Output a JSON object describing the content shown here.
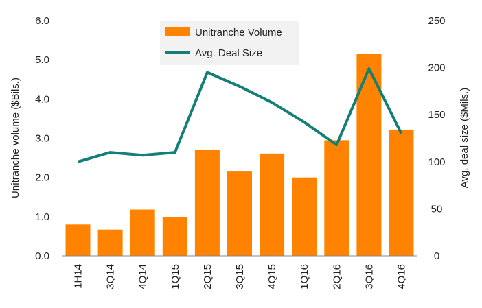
{
  "chart_data": {
    "type": "bar",
    "categories": [
      "1H14",
      "3Q14",
      "4Q14",
      "1Q15",
      "2Q15",
      "3Q15",
      "4Q15",
      "1Q16",
      "2Q16",
      "3Q16",
      "4Q16"
    ],
    "series": [
      {
        "name": "Unitranche Volume",
        "type": "bar",
        "axis": "left",
        "color": "#ff8200",
        "values": [
          0.8,
          0.67,
          1.18,
          0.98,
          2.71,
          2.15,
          2.61,
          2.0,
          2.95,
          5.15,
          3.22
        ]
      },
      {
        "name": "Avg. Deal Size",
        "type": "line",
        "axis": "right",
        "color": "#138078",
        "values": [
          100,
          110,
          107,
          110,
          195,
          180,
          163,
          142,
          118,
          199,
          130
        ]
      }
    ],
    "ylabel": "Unitranche volume ($Bils.)",
    "y2label": "Avg. deal size ($Mils.)",
    "ylim": [
      0,
      6
    ],
    "y2lim": [
      0,
      250
    ],
    "yticks": [
      "0.0",
      "1.0",
      "2.0",
      "3.0",
      "4.0",
      "5.0",
      "6.0"
    ],
    "y2ticks": [
      "0",
      "50",
      "100",
      "150",
      "200",
      "250"
    ],
    "grid": false,
    "legend_position": "top-center"
  }
}
